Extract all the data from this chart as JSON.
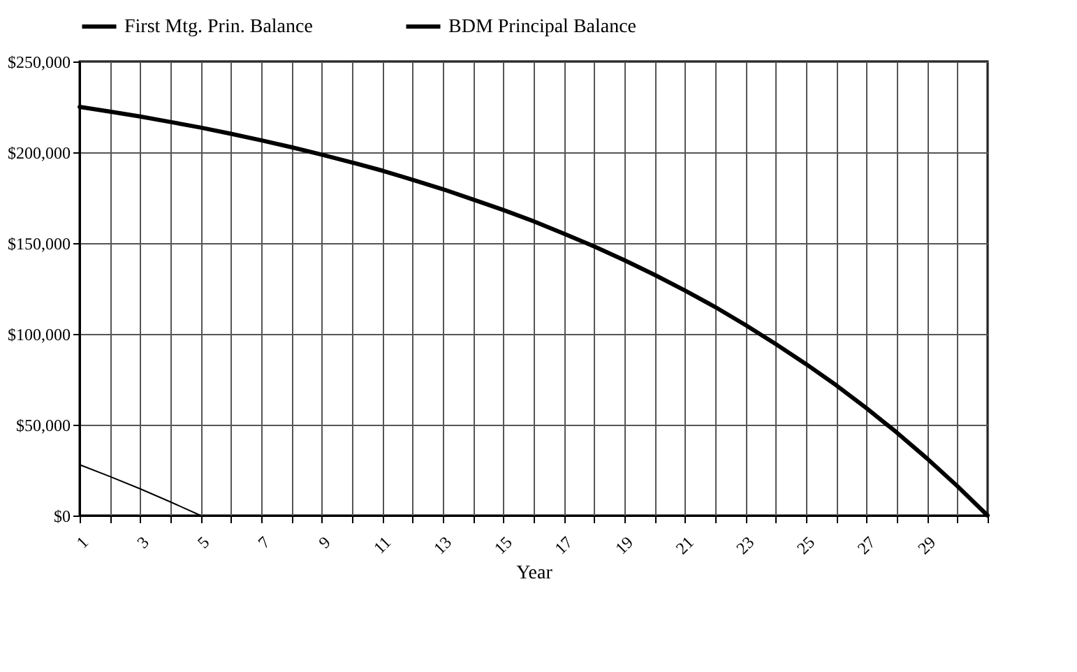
{
  "chart_data": {
    "type": "line",
    "xlabel": "Year",
    "x": [
      1,
      2,
      3,
      4,
      5,
      6,
      7,
      8,
      9,
      10,
      11,
      12,
      13,
      14,
      15,
      16,
      17,
      18,
      19,
      20,
      21,
      22,
      23,
      24,
      25,
      26,
      27,
      28,
      29,
      30,
      31
    ],
    "series": [
      {
        "name": "First Mtg. Prin. Balance",
        "color": "#000000",
        "values": [
          225000,
          222400,
          219700,
          216700,
          213600,
          210200,
          206600,
          202800,
          198700,
          194400,
          189900,
          184900,
          179700,
          174000,
          168200,
          162000,
          155200,
          148200,
          140600,
          132500,
          123900,
          114800,
          104900,
          94400,
          83400,
          71700,
          59100,
          45700,
          31400,
          16200,
          0
        ]
      },
      {
        "name": "BDM Principal  Balance",
        "color": "#000000",
        "x": [
          1,
          2,
          3,
          4,
          5
        ],
        "values": [
          28000,
          21500,
          14700,
          7500,
          0
        ]
      }
    ],
    "xlim": [
      1,
      31
    ],
    "xticks": [
      1,
      {
        "value": 2,
        "label": null
      },
      3,
      {
        "value": 4,
        "label": null
      },
      5,
      {
        "value": 6,
        "label": null
      },
      7,
      {
        "value": 8,
        "label": null
      },
      9,
      {
        "value": 10,
        "label": null
      },
      11,
      {
        "value": 12,
        "label": null
      },
      13,
      {
        "value": 14,
        "label": null
      },
      15,
      {
        "value": 16,
        "label": null
      },
      17,
      {
        "value": 18,
        "label": null
      },
      19,
      {
        "value": 20,
        "label": null
      },
      21,
      {
        "value": 22,
        "label": null
      },
      23,
      {
        "value": 24,
        "label": null
      },
      25,
      {
        "value": 26,
        "label": null
      },
      27,
      {
        "value": 28,
        "label": null
      },
      29,
      {
        "value": 30,
        "label": null
      },
      {
        "value": 31,
        "label": null
      }
    ],
    "ylim": [
      0,
      250000
    ],
    "yticks": [
      {
        "value": 0,
        "label": "$0"
      },
      {
        "value": 50000,
        "label": "$50,000"
      },
      {
        "value": 100000,
        "label": "$100,000"
      },
      {
        "value": 150000,
        "label": "$150,000"
      },
      {
        "value": 200000,
        "label": "$200,000"
      },
      {
        "value": 250000,
        "label": "$250,000"
      }
    ],
    "grid": true,
    "legend": "top",
    "line_style": "solid",
    "marker": "none"
  }
}
